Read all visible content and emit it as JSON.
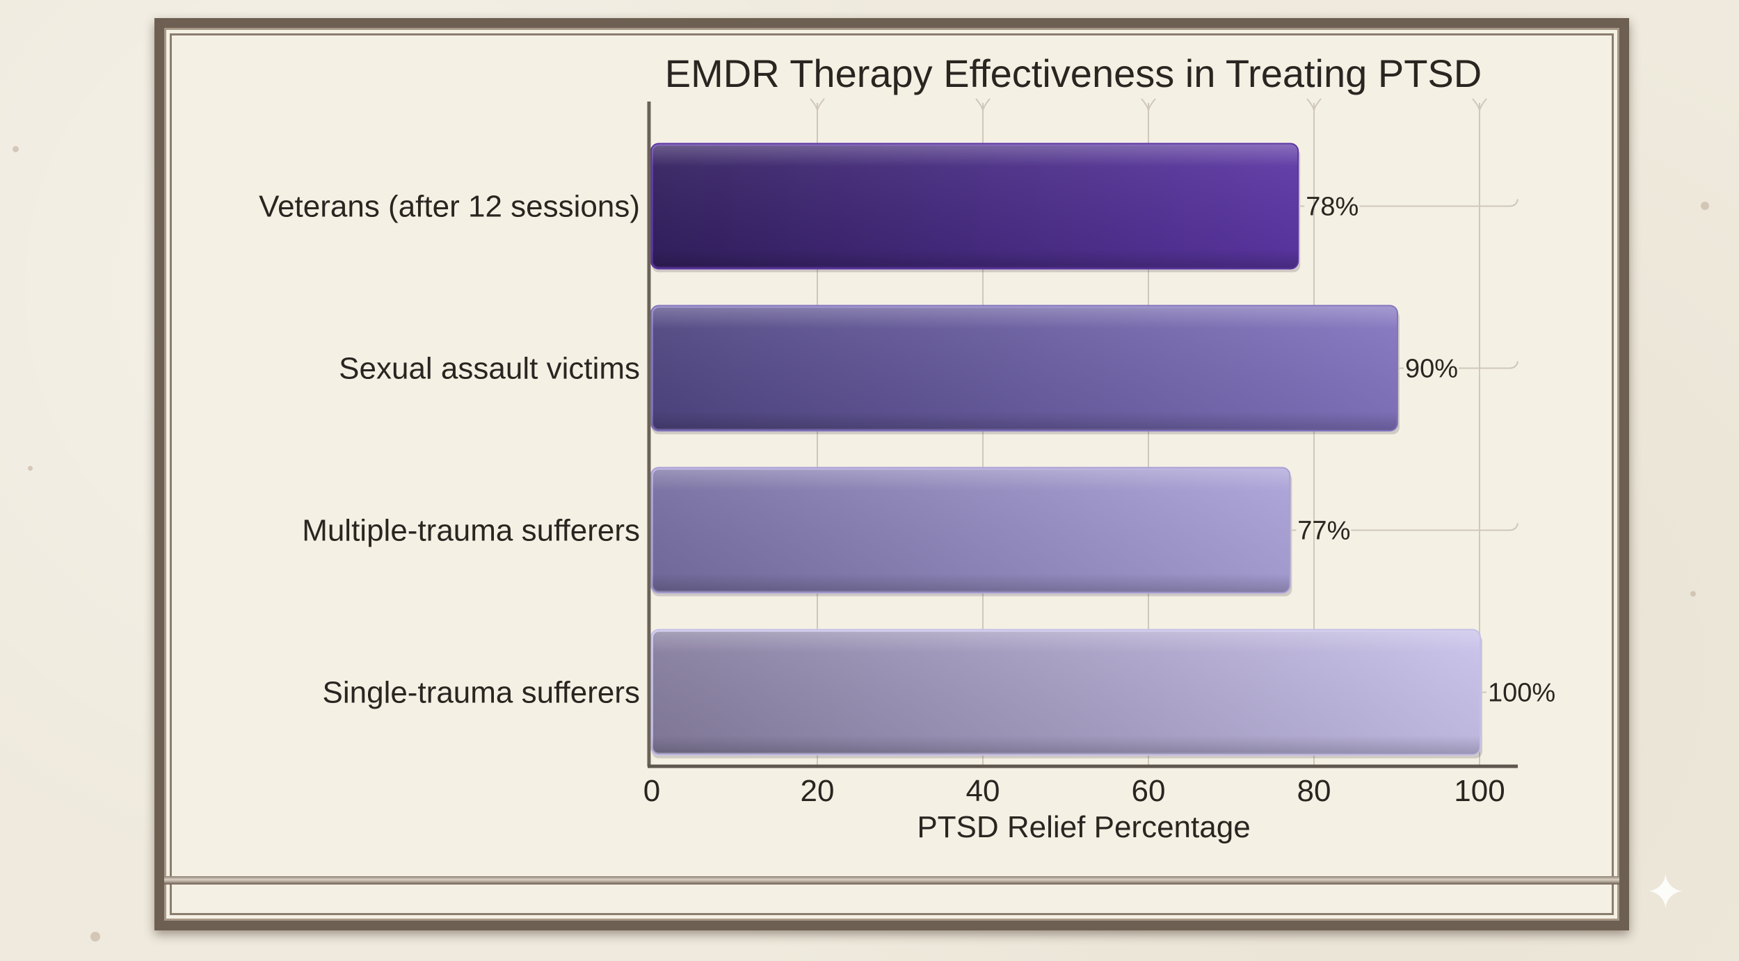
{
  "chart_data": {
    "type": "bar",
    "orientation": "horizontal",
    "title": "EMDR Therapy Effectiveness in Treating PTSD",
    "xlabel": "PTSD Relief Percentage",
    "ylabel": "",
    "xlim": [
      0,
      100
    ],
    "xticks": [
      0,
      20,
      40,
      60,
      80,
      100
    ],
    "grid": "vertical",
    "categories": [
      "Veterans (after 12 sessions)",
      "Sexual assault victims",
      "Multiple-trauma sufferers",
      "Single-trauma sufferers"
    ],
    "values": [
      78,
      90,
      77,
      100
    ],
    "data_labels": [
      "78%",
      "90%",
      "77%",
      "100%"
    ],
    "colors": [
      [
        "#33205f",
        "#5b36a3"
      ],
      [
        "#4f4580",
        "#8274be"
      ],
      [
        "#756d9f",
        "#a9a0d6"
      ],
      [
        "#857c9d",
        "#c6bfe8"
      ]
    ]
  }
}
